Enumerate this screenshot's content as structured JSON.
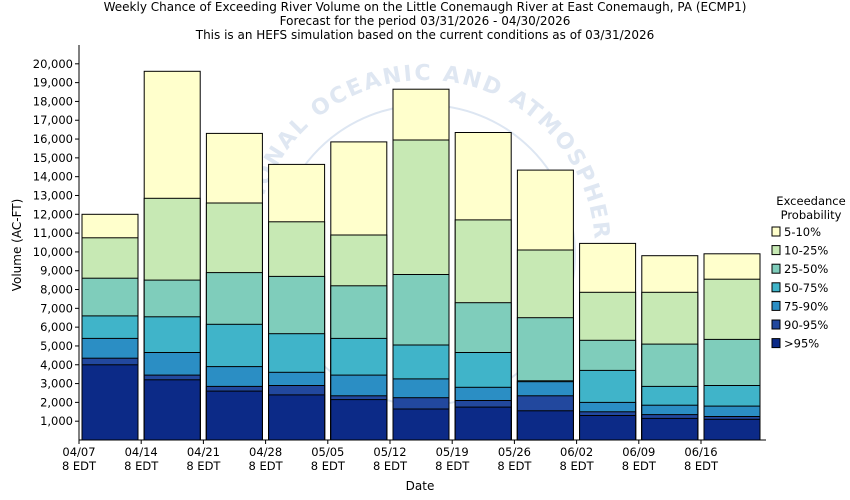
{
  "chart_data": {
    "type": "bar",
    "title": "Weekly Chance of Exceeding River Volume on the Little Conemaugh River at East Conemaugh, PA (ECMP1)",
    "subtitle": "Forecast for the period 03/31/2026 - 04/30/2026",
    "subtitle2": "This is an HEFS simulation based on the current conditions as of 03/31/2026",
    "xlabel": "Date",
    "ylabel": "Volume (AC-FT)",
    "ylim": [
      0,
      21000
    ],
    "yticks": [
      1000,
      2000,
      3000,
      4000,
      5000,
      6000,
      7000,
      8000,
      9000,
      10000,
      11000,
      12000,
      13000,
      14000,
      15000,
      16000,
      17000,
      18000,
      19000,
      20000
    ],
    "ytick_labels": [
      "1,000",
      "2,000",
      "3,000",
      "4,000",
      "5,000",
      "6,000",
      "7,000",
      "8,000",
      "9,000",
      "10,000",
      "11,000",
      "12,000",
      "13,000",
      "14,000",
      "15,000",
      "16,000",
      "17,000",
      "18,000",
      "19,000",
      "20,000"
    ],
    "xtick_labels": [
      {
        "date": "04/07",
        "time": "8 EDT"
      },
      {
        "date": "04/14",
        "time": "8 EDT"
      },
      {
        "date": "04/21",
        "time": "8 EDT"
      },
      {
        "date": "04/28",
        "time": "8 EDT"
      },
      {
        "date": "05/05",
        "time": "8 EDT"
      },
      {
        "date": "05/12",
        "time": "8 EDT"
      },
      {
        "date": "05/19",
        "time": "8 EDT"
      },
      {
        "date": "05/26",
        "time": "8 EDT"
      },
      {
        "date": "06/02",
        "time": "8 EDT"
      },
      {
        "date": "06/09",
        "time": "8 EDT"
      },
      {
        "date": "06/16",
        "time": "8 EDT"
      }
    ],
    "legend_title": [
      "Exceedance",
      "Probability"
    ],
    "legend_position": "right",
    "grid": false,
    "watermark": "NATIONAL OCEANIC AND ATMOSPHERIC ADMINISTRATION",
    "series": [
      {
        "name": ">95%",
        "color": "#0c2a87",
        "values": [
          4000,
          3200,
          2600,
          2400,
          2150,
          1650,
          1750,
          1550,
          1300,
          1150,
          1100
        ]
      },
      {
        "name": "90-95%",
        "color": "#22489e",
        "values": [
          4350,
          3450,
          2850,
          2900,
          2350,
          2250,
          2100,
          2350,
          1500,
          1350,
          1250
        ]
      },
      {
        "name": "75-90%",
        "color": "#2b8ec4",
        "values": [
          5400,
          4650,
          3900,
          3600,
          3450,
          3250,
          2800,
          3100,
          2000,
          1850,
          1800
        ]
      },
      {
        "name": "50-75%",
        "color": "#40b4c9",
        "values": [
          6600,
          6550,
          6150,
          5650,
          5400,
          5050,
          4650,
          3150,
          3700,
          2850,
          2900
        ]
      },
      {
        "name": "25-50%",
        "color": "#7fcdbb",
        "values": [
          8600,
          8500,
          8900,
          8700,
          8200,
          8800,
          7300,
          6500,
          5300,
          5100,
          5350
        ]
      },
      {
        "name": "10-25%",
        "color": "#c7e9b4",
        "values": [
          10750,
          12850,
          12600,
          11600,
          10900,
          15950,
          11700,
          10100,
          7850,
          7850,
          8550
        ]
      },
      {
        "name": "5-10%",
        "color": "#ffffcc",
        "values": [
          12000,
          19600,
          16300,
          14650,
          15850,
          18650,
          16350,
          14350,
          10450,
          9800,
          9900
        ]
      }
    ]
  }
}
